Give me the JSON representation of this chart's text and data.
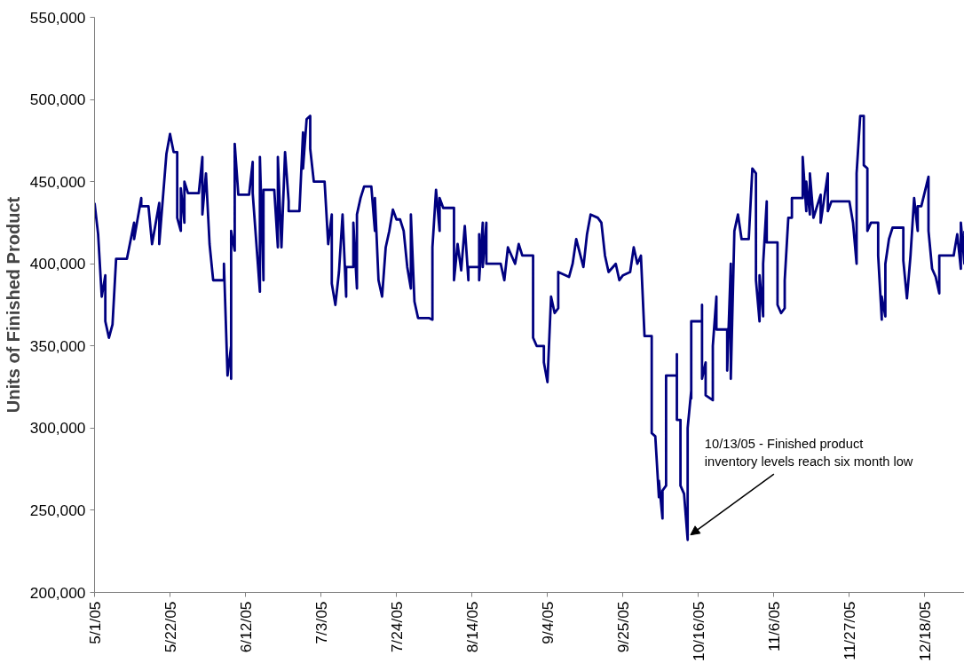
{
  "chart_data": {
    "type": "line",
    "ylabel": "Units of Finished Product",
    "xlim": [
      "2005-05-01",
      "2005-12-29"
    ],
    "xticks": [
      {
        "value": "2005-05-01",
        "label": "5/1/05"
      },
      {
        "value": "2005-05-22",
        "label": "5/22/05"
      },
      {
        "value": "2005-06-12",
        "label": "6/12/05"
      },
      {
        "value": "2005-07-03",
        "label": "7/3/05"
      },
      {
        "value": "2005-07-24",
        "label": "7/24/05"
      },
      {
        "value": "2005-08-14",
        "label": "8/14/05"
      },
      {
        "value": "2005-09-04",
        "label": "9/4/05"
      },
      {
        "value": "2005-09-25",
        "label": "9/25/05"
      },
      {
        "value": "2005-10-16",
        "label": "10/16/05"
      },
      {
        "value": "2005-11-06",
        "label": "11/6/05"
      },
      {
        "value": "2005-11-27",
        "label": "11/27/05"
      },
      {
        "value": "2005-12-18",
        "label": "12/18/05"
      }
    ],
    "ylim": [
      200000,
      550000
    ],
    "yticks": [
      {
        "value": 200000,
        "label": "200,000"
      },
      {
        "value": 250000,
        "label": "250,000"
      },
      {
        "value": 300000,
        "label": "300,000"
      },
      {
        "value": 350000,
        "label": "350,000"
      },
      {
        "value": 400000,
        "label": "400,000"
      },
      {
        "value": 450000,
        "label": "450,000"
      },
      {
        "value": 500000,
        "label": "500,000"
      },
      {
        "value": 550000,
        "label": "550,000"
      }
    ],
    "grid": false,
    "marker": "none",
    "line_style": "solid",
    "annotations": [
      {
        "text": "10/13/05 - Finished product\ninventory levels reach six month low",
        "x": "2005-10-13",
        "y": 232000
      }
    ],
    "series": [
      {
        "color": "#000080",
        "x": [
          "2005-05-01",
          "2005-05-02",
          "2005-05-03",
          "2005-05-04",
          "2005-05-04",
          "2005-05-05",
          "2005-05-06",
          "2005-05-07",
          "2005-05-10",
          "2005-05-12",
          "2005-05-12",
          "2005-05-14",
          "2005-05-14",
          "2005-05-16",
          "2005-05-17",
          "2005-05-19",
          "2005-05-19",
          "2005-05-21",
          "2005-05-22",
          "2005-05-23",
          "2005-05-24",
          "2005-05-24",
          "2005-05-25",
          "2005-05-25",
          "2005-05-26",
          "2005-05-26",
          "2005-05-27",
          "2005-05-30",
          "2005-05-31",
          "2005-05-31",
          "2005-06-01",
          "2005-06-02",
          "2005-06-03",
          "2005-06-06",
          "2005-06-06",
          "2005-06-07",
          "2005-06-08",
          "2005-06-08",
          "2005-06-08",
          "2005-06-09",
          "2005-06-09",
          "2005-06-10",
          "2005-06-13",
          "2005-06-14",
          "2005-06-14",
          "2005-06-16",
          "2005-06-16",
          "2005-06-17",
          "2005-06-17",
          "2005-06-20",
          "2005-06-21",
          "2005-06-21",
          "2005-06-22",
          "2005-06-23",
          "2005-06-24",
          "2005-06-24",
          "2005-06-27",
          "2005-06-28",
          "2005-06-28",
          "2005-06-29",
          "2005-06-30",
          "2005-06-30",
          "2005-07-01",
          "2005-07-04",
          "2005-07-05",
          "2005-07-06",
          "2005-07-06",
          "2005-07-07",
          "2005-07-08",
          "2005-07-09",
          "2005-07-10",
          "2005-07-10",
          "2005-07-12",
          "2005-07-12",
          "2005-07-13",
          "2005-07-13",
          "2005-07-14",
          "2005-07-15",
          "2005-07-17",
          "2005-07-18",
          "2005-07-18",
          "2005-07-19",
          "2005-07-20",
          "2005-07-21",
          "2005-07-22",
          "2005-07-23",
          "2005-07-24",
          "2005-07-25",
          "2005-07-26",
          "2005-07-27",
          "2005-07-28",
          "2005-07-28",
          "2005-07-29",
          "2005-07-30",
          "2005-08-02",
          "2005-08-03",
          "2005-08-03",
          "2005-08-04",
          "2005-08-05",
          "2005-08-05",
          "2005-08-06",
          "2005-08-09",
          "2005-08-09",
          "2005-08-10",
          "2005-08-11",
          "2005-08-12",
          "2005-08-13",
          "2005-08-13",
          "2005-08-16",
          "2005-08-16",
          "2005-08-16",
          "2005-08-17",
          "2005-08-17",
          "2005-08-18",
          "2005-08-18",
          "2005-08-22",
          "2005-08-23",
          "2005-08-24",
          "2005-08-26",
          "2005-08-27",
          "2005-08-28",
          "2005-08-31",
          "2005-08-31",
          "2005-09-01",
          "2005-09-03",
          "2005-09-03",
          "2005-09-04",
          "2005-09-05",
          "2005-09-06",
          "2005-09-07",
          "2005-09-07",
          "2005-09-10",
          "2005-09-11",
          "2005-09-12",
          "2005-09-14",
          "2005-09-15",
          "2005-09-16",
          "2005-09-18",
          "2005-09-19",
          "2005-09-20",
          "2005-09-21",
          "2005-09-23",
          "2005-09-24",
          "2005-09-25",
          "2005-09-27",
          "2005-09-28",
          "2005-09-29",
          "2005-09-30",
          "2005-10-01",
          "2005-10-03",
          "2005-10-03",
          "2005-10-04",
          "2005-10-05",
          "2005-10-05",
          "2005-10-06",
          "2005-10-06",
          "2005-10-07",
          "2005-10-07",
          "2005-10-10",
          "2005-10-10",
          "2005-10-10",
          "2005-10-11",
          "2005-10-11",
          "2005-10-12",
          "2005-10-13",
          "2005-10-13",
          "2005-10-13",
          "2005-10-14",
          "2005-10-14",
          "2005-10-14",
          "2005-10-17",
          "2005-10-17",
          "2005-10-17",
          "2005-10-18",
          "2005-10-18",
          "2005-10-20",
          "2005-10-20",
          "2005-10-21",
          "2005-10-21",
          "2005-10-24",
          "2005-10-24",
          "2005-10-25",
          "2005-10-25",
          "2005-10-26",
          "2005-10-27",
          "2005-10-28",
          "2005-10-30",
          "2005-10-31",
          "2005-11-01",
          "2005-11-01",
          "2005-11-02",
          "2005-11-02",
          "2005-11-03",
          "2005-11-03",
          "2005-11-04",
          "2005-11-04",
          "2005-11-07",
          "2005-11-07",
          "2005-11-08",
          "2005-11-09",
          "2005-11-09",
          "2005-11-10",
          "2005-11-11",
          "2005-11-11",
          "2005-11-14",
          "2005-11-14",
          "2005-11-15",
          "2005-11-15",
          "2005-11-16",
          "2005-11-16",
          "2005-11-17",
          "2005-11-19",
          "2005-11-19",
          "2005-11-21",
          "2005-11-21",
          "2005-11-22",
          "2005-11-27",
          "2005-11-28",
          "2005-11-29",
          "2005-11-29",
          "2005-11-30",
          "2005-12-01",
          "2005-12-01",
          "2005-12-02",
          "2005-12-02",
          "2005-12-03",
          "2005-12-05",
          "2005-12-05",
          "2005-12-06",
          "2005-12-06",
          "2005-12-07",
          "2005-12-07",
          "2005-12-08",
          "2005-12-09",
          "2005-12-12",
          "2005-12-12",
          "2005-12-13",
          "2005-12-14",
          "2005-12-15",
          "2005-12-16",
          "2005-12-16",
          "2005-12-17",
          "2005-12-19",
          "2005-12-19",
          "2005-12-20",
          "2005-12-21",
          "2005-12-22",
          "2005-12-22",
          "2005-12-26",
          "2005-12-27",
          "2005-12-28",
          "2005-12-28",
          "2005-12-29",
          "2005-12-29"
        ],
        "values": [
          437000,
          418000,
          380000,
          393000,
          365000,
          355000,
          363000,
          403000,
          403000,
          425000,
          415000,
          440000,
          435000,
          435000,
          412000,
          437000,
          412000,
          467000,
          479000,
          468000,
          468000,
          428000,
          420000,
          446000,
          425000,
          450000,
          443000,
          443000,
          465000,
          430000,
          455000,
          412000,
          390000,
          390000,
          400000,
          332000,
          350000,
          330000,
          420000,
          408000,
          473000,
          442000,
          442000,
          462000,
          443000,
          383000,
          465000,
          390000,
          445000,
          445000,
          410000,
          465000,
          410000,
          468000,
          438000,
          432000,
          432000,
          480000,
          458000,
          488000,
          490000,
          470000,
          450000,
          450000,
          412000,
          430000,
          388000,
          375000,
          395000,
          430000,
          380000,
          398000,
          398000,
          425000,
          385000,
          430000,
          440000,
          447000,
          447000,
          420000,
          440000,
          390000,
          380000,
          410000,
          420000,
          433000,
          427000,
          427000,
          420000,
          398000,
          385000,
          430000,
          377000,
          367000,
          367000,
          366000,
          410000,
          445000,
          420000,
          440000,
          434000,
          434000,
          390000,
          412000,
          396000,
          423000,
          390000,
          398000,
          398000,
          418000,
          390000,
          425000,
          398000,
          425000,
          400000,
          400000,
          390000,
          410000,
          400000,
          412000,
          405000,
          405000,
          355000,
          350000,
          350000,
          340000,
          328000,
          380000,
          370000,
          373000,
          395000,
          392000,
          400000,
          415000,
          398000,
          418000,
          430000,
          428000,
          425000,
          405000,
          395000,
          400000,
          390000,
          393000,
          395000,
          410000,
          400000,
          405000,
          356000,
          356000,
          297000,
          295000,
          258000,
          268000,
          245000,
          262000,
          265000,
          332000,
          332000,
          345000,
          305000,
          305000,
          265000,
          260000,
          232000,
          240000,
          300000,
          323000,
          318000,
          365000,
          365000,
          375000,
          330000,
          340000,
          320000,
          317000,
          350000,
          380000,
          360000,
          360000,
          335000,
          400000,
          330000,
          420000,
          430000,
          415000,
          415000,
          458000,
          455000,
          390000,
          365000,
          393000,
          368000,
          400000,
          438000,
          413000,
          413000,
          375000,
          370000,
          373000,
          390000,
          428000,
          428000,
          440000,
          440000,
          465000,
          432000,
          450000,
          430000,
          455000,
          428000,
          442000,
          425000,
          455000,
          432000,
          438000,
          438000,
          425000,
          400000,
          455000,
          490000,
          490000,
          460000,
          458000,
          420000,
          425000,
          425000,
          405000,
          366000,
          380000,
          368000,
          400000,
          415000,
          422000,
          422000,
          402000,
          379000,
          405000,
          440000,
          420000,
          435000,
          435000,
          453000,
          420000,
          397000,
          392000,
          382000,
          405000,
          405000,
          418000,
          397000,
          425000,
          400000,
          420000
        ]
      }
    ]
  }
}
